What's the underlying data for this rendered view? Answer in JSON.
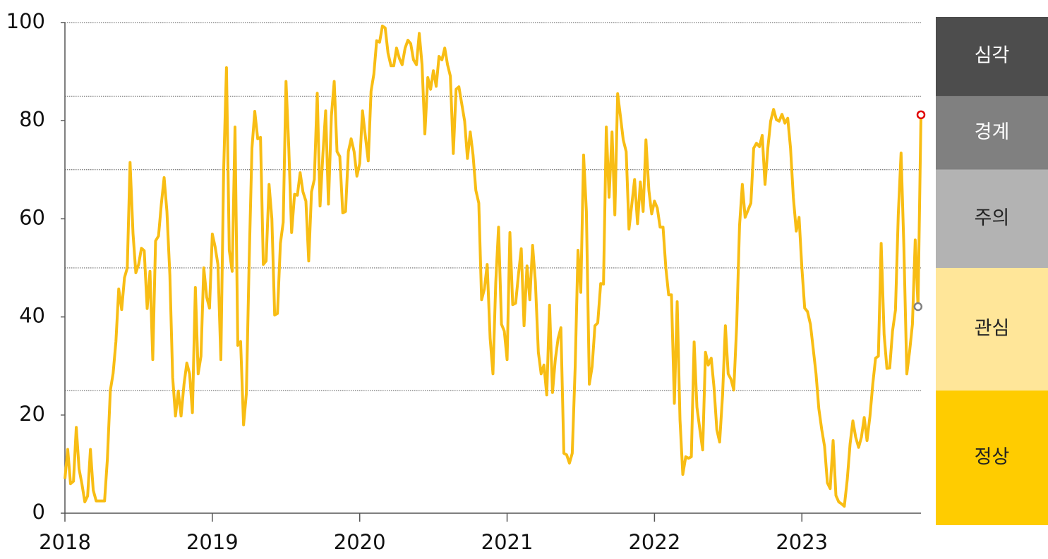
{
  "chart_data": {
    "type": "line",
    "color": "#f8bd14",
    "xlim": [
      2018,
      2023.808
    ],
    "xticks": [
      2018,
      2019,
      2020,
      2021,
      2022,
      2023
    ],
    "ylim": [
      0,
      100
    ],
    "yticks": [
      0,
      20,
      40,
      60,
      80,
      100
    ],
    "prev_point_color": "#808080",
    "last_point_color": "#e00000",
    "bands": [
      {
        "label": "심각",
        "from": 85,
        "to": 100,
        "color": "#4d4d4d",
        "text_color": "#ffffff"
      },
      {
        "label": "경계",
        "from": 70,
        "to": 85,
        "color": "#808080",
        "text_color": "#ffffff"
      },
      {
        "label": "주의",
        "from": 50,
        "to": 70,
        "color": "#b3b3b3",
        "text_color": "#222222"
      },
      {
        "label": "관심",
        "from": 25,
        "to": 50,
        "color": "#ffe699",
        "text_color": "#222222"
      },
      {
        "label": "정상",
        "from": 0,
        "to": 25,
        "color": "#ffcc00",
        "text_color": "#222222"
      }
    ],
    "x": [
      2018,
      2018.019,
      2018.038,
      2018.058,
      2018.077,
      2018.096,
      2018.115,
      2018.135,
      2018.154,
      2018.173,
      2018.192,
      2018.212,
      2018.231,
      2018.25,
      2018.269,
      2018.288,
      2018.308,
      2018.327,
      2018.346,
      2018.365,
      2018.385,
      2018.404,
      2018.423,
      2018.442,
      2018.462,
      2018.481,
      2018.5,
      2018.519,
      2018.538,
      2018.558,
      2018.577,
      2018.596,
      2018.615,
      2018.635,
      2018.654,
      2018.673,
      2018.692,
      2018.712,
      2018.731,
      2018.75,
      2018.769,
      2018.788,
      2018.808,
      2018.827,
      2018.846,
      2018.865,
      2018.885,
      2018.904,
      2018.923,
      2018.942,
      2018.962,
      2018.981,
      2019,
      2019.019,
      2019.038,
      2019.058,
      2019.077,
      2019.096,
      2019.115,
      2019.135,
      2019.154,
      2019.173,
      2019.192,
      2019.212,
      2019.231,
      2019.25,
      2019.269,
      2019.288,
      2019.308,
      2019.327,
      2019.346,
      2019.365,
      2019.385,
      2019.404,
      2019.423,
      2019.442,
      2019.462,
      2019.481,
      2019.5,
      2019.519,
      2019.538,
      2019.558,
      2019.577,
      2019.596,
      2019.615,
      2019.635,
      2019.654,
      2019.673,
      2019.692,
      2019.712,
      2019.731,
      2019.75,
      2019.769,
      2019.788,
      2019.808,
      2019.827,
      2019.846,
      2019.865,
      2019.885,
      2019.904,
      2019.923,
      2019.942,
      2019.962,
      2019.981,
      2020,
      2020.019,
      2020.038,
      2020.058,
      2020.077,
      2020.096,
      2020.115,
      2020.135,
      2020.154,
      2020.173,
      2020.192,
      2020.212,
      2020.231,
      2020.25,
      2020.269,
      2020.288,
      2020.308,
      2020.327,
      2020.346,
      2020.365,
      2020.385,
      2020.404,
      2020.423,
      2020.442,
      2020.462,
      2020.481,
      2020.5,
      2020.519,
      2020.538,
      2020.558,
      2020.577,
      2020.596,
      2020.615,
      2020.635,
      2020.654,
      2020.673,
      2020.692,
      2020.712,
      2020.731,
      2020.75,
      2020.769,
      2020.788,
      2020.808,
      2020.827,
      2020.846,
      2020.865,
      2020.885,
      2020.904,
      2020.923,
      2020.942,
      2020.962,
      2020.981,
      2021,
      2021.019,
      2021.038,
      2021.058,
      2021.077,
      2021.096,
      2021.115,
      2021.135,
      2021.154,
      2021.173,
      2021.192,
      2021.212,
      2021.231,
      2021.25,
      2021.269,
      2021.288,
      2021.308,
      2021.327,
      2021.346,
      2021.365,
      2021.385,
      2021.404,
      2021.423,
      2021.442,
      2021.462,
      2021.481,
      2021.5,
      2021.519,
      2021.538,
      2021.558,
      2021.577,
      2021.596,
      2021.615,
      2021.635,
      2021.654,
      2021.673,
      2021.692,
      2021.712,
      2021.731,
      2021.75,
      2021.769,
      2021.788,
      2021.808,
      2021.827,
      2021.846,
      2021.865,
      2021.885,
      2021.904,
      2021.923,
      2021.942,
      2021.962,
      2021.981,
      2022,
      2022.019,
      2022.038,
      2022.058,
      2022.077,
      2022.096,
      2022.115,
      2022.135,
      2022.154,
      2022.173,
      2022.192,
      2022.212,
      2022.231,
      2022.25,
      2022.269,
      2022.288,
      2022.308,
      2022.327,
      2022.346,
      2022.365,
      2022.385,
      2022.404,
      2022.423,
      2022.442,
      2022.462,
      2022.481,
      2022.5,
      2022.519,
      2022.538,
      2022.558,
      2022.577,
      2022.596,
      2022.615,
      2022.635,
      2022.654,
      2022.673,
      2022.692,
      2022.712,
      2022.731,
      2022.75,
      2022.769,
      2022.788,
      2022.808,
      2022.827,
      2022.846,
      2022.865,
      2022.885,
      2022.904,
      2022.923,
      2022.942,
      2022.962,
      2022.981,
      2023,
      2023.019,
      2023.038,
      2023.058,
      2023.077,
      2023.096,
      2023.115,
      2023.135,
      2023.154,
      2023.173,
      2023.192,
      2023.212,
      2023.231,
      2023.25,
      2023.269,
      2023.288,
      2023.308,
      2023.327,
      2023.346,
      2023.365,
      2023.385,
      2023.404,
      2023.423,
      2023.442,
      2023.462,
      2023.481,
      2023.5,
      2023.519,
      2023.538,
      2023.558,
      2023.577,
      2023.596,
      2023.615,
      2023.635,
      2023.654,
      2023.673,
      2023.692,
      2023.712,
      2023.731,
      2023.75,
      2023.769,
      2023.788,
      2023.808
    ],
    "values": [
      7,
      13,
      6,
      6.5,
      17.5,
      9,
      6,
      2.3,
      3.5,
      13,
      4.7,
      2.5,
      2.5,
      2.5,
      2.5,
      11,
      25,
      28.5,
      35,
      45.7,
      41.5,
      48,
      50,
      71.5,
      57,
      49,
      50.7,
      54,
      53.5,
      41.7,
      49.3,
      31.3,
      55.5,
      56.5,
      63,
      68.4,
      61.5,
      48.5,
      27.7,
      19.8,
      24.9,
      19.8,
      26.3,
      30.6,
      28.4,
      20.5,
      46,
      28.4,
      32,
      50,
      44,
      41.8,
      56.9,
      54.3,
      50.7,
      31.3,
      70,
      90.8,
      53.6,
      49.3,
      78.7,
      34.2,
      35,
      18,
      24.4,
      51.4,
      74.4,
      81.9,
      76.3,
      76.6,
      50.7,
      51.4,
      67,
      60,
      40.4,
      40.7,
      55,
      59.3,
      88,
      74.4,
      57.2,
      65,
      64.8,
      69.4,
      65.5,
      63.6,
      51.4,
      65.5,
      68,
      85.6,
      62.6,
      73,
      82,
      63,
      81,
      88,
      73.7,
      72.7,
      61.2,
      61.5,
      73.7,
      76.3,
      73.7,
      68.7,
      71.3,
      82,
      76.9,
      71.8,
      86,
      89.5,
      96.3,
      96,
      99.3,
      98.9,
      93.8,
      91.2,
      91.2,
      94.8,
      92.7,
      91.4,
      94.8,
      96.4,
      95.7,
      92.4,
      91.4,
      97.8,
      91.4,
      77.3,
      88.8,
      86.4,
      90.2,
      87,
      93.1,
      92.4,
      94.8,
      91.4,
      89.1,
      73.3,
      86.4,
      86.9,
      83.5,
      79.9,
      72.3,
      77.7,
      73,
      65.8,
      63.2,
      43.5,
      45.7,
      50.7,
      35.6,
      28.4,
      47,
      58.3,
      38.5,
      37.1,
      31.3,
      57.2,
      42.5,
      42.8,
      48.6,
      53.9,
      38.2,
      50.4,
      43.5,
      54.6,
      47.1,
      32.8,
      28.4,
      30.2,
      24.1,
      42.4,
      24.6,
      31.3,
      35.6,
      37.8,
      12.2,
      11.9,
      10.2,
      12.2,
      29.9,
      53.6,
      45,
      73,
      61.5,
      26.3,
      29.9,
      38.2,
      38.8,
      46.8,
      46.7,
      78.7,
      64.4,
      77.7,
      60.8,
      85.5,
      80.9,
      76.1,
      73.7,
      57.9,
      62.9,
      68,
      59,
      67.5,
      61.5,
      76.1,
      65.8,
      61,
      63.6,
      62.2,
      58.3,
      58.3,
      50,
      44.5,
      44.5,
      22.4,
      43.1,
      19.1,
      7.9,
      11.5,
      11.2,
      11.5,
      34.9,
      21.6,
      17,
      12.9,
      32.8,
      30.2,
      31.6,
      25.6,
      17,
      14.5,
      24.1,
      38.2,
      28.4,
      27.3,
      25.1,
      38.5,
      58.6,
      67,
      60.3,
      61.8,
      63.2,
      74.4,
      75.4,
      74.7,
      77,
      67,
      74.4,
      79.9,
      82.3,
      80.2,
      79.9,
      81.3,
      79.5,
      80.5,
      74.4,
      64.4,
      57.5,
      60.3,
      50,
      41.8,
      41.1,
      38.5,
      33.5,
      28.4,
      21.3,
      17,
      13.6,
      6.2,
      5,
      14.8,
      3.6,
      2.3,
      1.9,
      1.4,
      6.9,
      14.1,
      18.8,
      15.5,
      13.4,
      15.5,
      19.5,
      14.8,
      19.8,
      26.3,
      31.6,
      32,
      55,
      36.4,
      29.5,
      29.6,
      37.1,
      41.4,
      60.8,
      73.4,
      54.3,
      28.4,
      33,
      38.5,
      55.7,
      42.1,
      81.2
    ]
  }
}
